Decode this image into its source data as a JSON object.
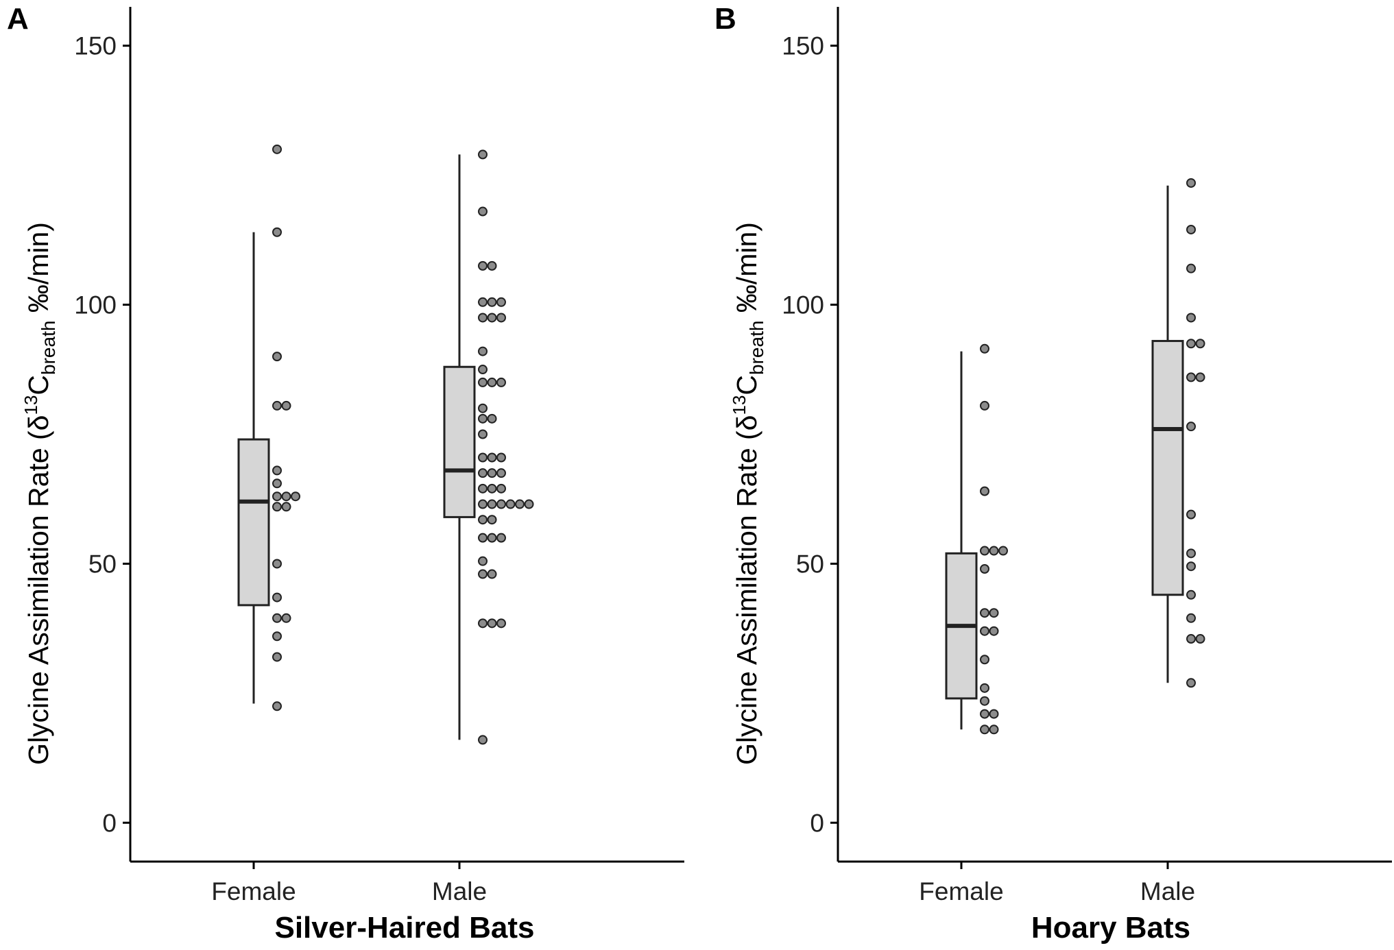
{
  "colors": {
    "box_fill": "#d6d6d6",
    "box_stroke": "#222222",
    "point_fill": "#8c8c8c",
    "point_stroke": "#222222",
    "axis": "#000000"
  },
  "chart_data": [
    {
      "type": "box",
      "panel_label": "A",
      "title": "",
      "xlabel": "Silver-Haired Bats",
      "ylabel_parts": {
        "prefix": "Glycine Assimilation Rate (δ",
        "sup": "13",
        "mid": "C",
        "sub": "breath",
        "suffix": " ‰/min)"
      },
      "ylim": [
        -7.5,
        157.5
      ],
      "yticks": [
        0,
        50,
        100,
        150
      ],
      "ytick_labels": [
        "0",
        "50",
        "100",
        "150"
      ],
      "categories": [
        "Female",
        "Male"
      ],
      "boxes": [
        {
          "category": "Female",
          "whisker_low": 23,
          "q1": 42,
          "median": 62,
          "q3": 74,
          "whisker_high": 114
        },
        {
          "category": "Male",
          "whisker_low": 16,
          "q1": 59,
          "median": 68,
          "q3": 88,
          "whisker_high": 129
        }
      ],
      "points": [
        {
          "category": "Female",
          "values": [
            130,
            114,
            90,
            80.5,
            80.5,
            68,
            65.5,
            63,
            63,
            63,
            61,
            61,
            50,
            43.5,
            39.5,
            39.5,
            36,
            32,
            22.5
          ]
        },
        {
          "category": "Male",
          "values": [
            129,
            118,
            107.5,
            107.5,
            100.5,
            100.5,
            100.5,
            97.5,
            97.5,
            97.5,
            91,
            87.5,
            85,
            85,
            85,
            80,
            78,
            78,
            75,
            70.5,
            70.5,
            70.5,
            67.5,
            67.5,
            67.5,
            64.5,
            64.5,
            64.5,
            61.5,
            61.5,
            61.5,
            61.5,
            61.5,
            61.5,
            58.5,
            58.5,
            55,
            55,
            55,
            50.5,
            48,
            48,
            38.5,
            38.5,
            38.5,
            16
          ]
        }
      ]
    },
    {
      "type": "box",
      "panel_label": "B",
      "title": "",
      "xlabel": "Hoary Bats",
      "ylabel_parts": {
        "prefix": "Glycine Assimilation Rate (δ",
        "sup": "13",
        "mid": "C",
        "sub": "breath",
        "suffix": " ‰/min)"
      },
      "ylim": [
        -7.5,
        157.5
      ],
      "yticks": [
        0,
        50,
        100,
        150
      ],
      "ytick_labels": [
        "0",
        "50",
        "100",
        "150"
      ],
      "categories": [
        "Female",
        "Male"
      ],
      "boxes": [
        {
          "category": "Female",
          "whisker_low": 18,
          "q1": 24,
          "median": 38,
          "q3": 52,
          "whisker_high": 91
        },
        {
          "category": "Male",
          "whisker_low": 27,
          "q1": 44,
          "median": 76,
          "q3": 93,
          "whisker_high": 123
        }
      ],
      "points": [
        {
          "category": "Female",
          "values": [
            91.5,
            80.5,
            64,
            52.5,
            52.5,
            52.5,
            49,
            40.5,
            40.5,
            37,
            37,
            31.5,
            26,
            23.5,
            21,
            21,
            18,
            18
          ]
        },
        {
          "category": "Male",
          "values": [
            123.5,
            114.5,
            107,
            97.5,
            92.5,
            92.5,
            86,
            86,
            76.5,
            59.5,
            52,
            49.5,
            44,
            39.5,
            35.5,
            35.5,
            27
          ]
        }
      ]
    }
  ]
}
